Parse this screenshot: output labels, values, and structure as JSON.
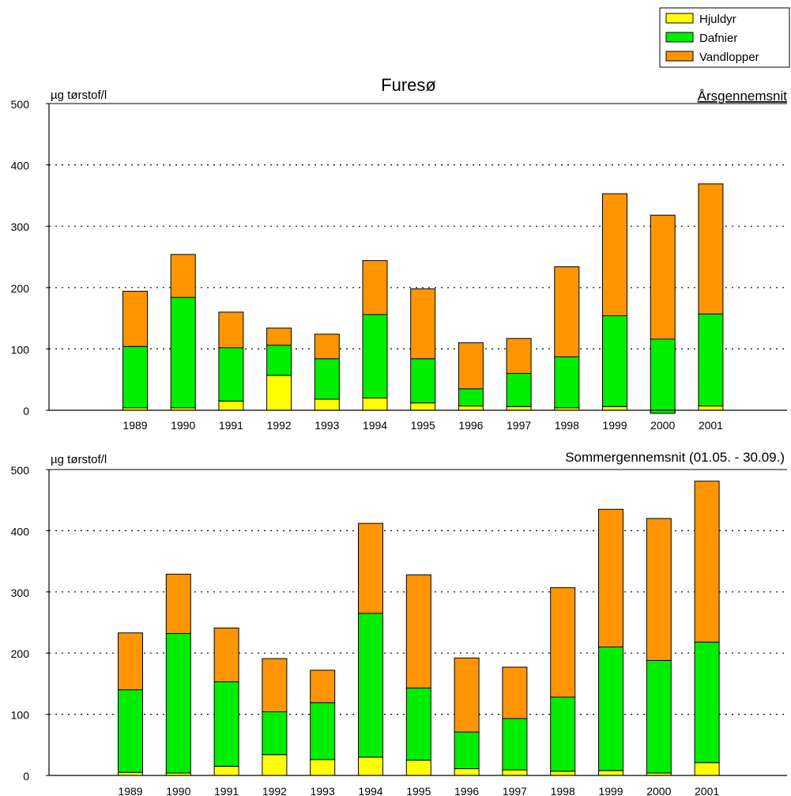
{
  "title": "Furesø",
  "legend": {
    "position": "top-right",
    "items": [
      {
        "label": "Hjuldyr",
        "color": "#FFFF00"
      },
      {
        "label": "Dafnier",
        "color": "#00EE00"
      },
      {
        "label": "Vandlopper",
        "color": "#FF9500"
      }
    ]
  },
  "chart_data": [
    {
      "type": "bar",
      "stacked": true,
      "subtitle": "Årsgennemsnit",
      "ylabel": "µg tørstof/l",
      "ylim": [
        0,
        500
      ],
      "yticks": [
        0,
        100,
        200,
        300,
        400,
        500
      ],
      "grid": "dotted-horizontal",
      "categories": [
        "1989",
        "1990",
        "1991",
        "1992",
        "1993",
        "1994",
        "1995",
        "1996",
        "1997",
        "1998",
        "1999",
        "2000",
        "2001"
      ],
      "series": [
        {
          "name": "Hjuldyr",
          "color": "#FFFF00",
          "values": [
            4,
            4,
            15,
            57,
            18,
            20,
            12,
            7,
            6,
            4,
            6,
            -5,
            7
          ]
        },
        {
          "name": "Dafnier",
          "color": "#00EE00",
          "values": [
            100,
            180,
            87,
            49,
            66,
            136,
            72,
            28,
            54,
            83,
            148,
            121,
            150
          ]
        },
        {
          "name": "Vandlopper",
          "color": "#FF9500",
          "values": [
            90,
            70,
            58,
            28,
            40,
            88,
            114,
            75,
            57,
            147,
            199,
            202,
            212
          ]
        }
      ]
    },
    {
      "type": "bar",
      "stacked": true,
      "subtitle": "Sommergennemsnit (01.05. - 30.09.)",
      "ylabel": "µg tørstof/l",
      "ylim": [
        0,
        500
      ],
      "yticks": [
        0,
        100,
        200,
        300,
        400,
        500
      ],
      "grid": "dotted-horizontal",
      "categories": [
        "1989",
        "1990",
        "1991",
        "1992",
        "1993",
        "1994",
        "1995",
        "1996",
        "1997",
        "1998",
        "1999",
        "2000",
        "2001"
      ],
      "series": [
        {
          "name": "Hjuldyr",
          "color": "#FFFF00",
          "values": [
            5,
            4,
            15,
            34,
            26,
            30,
            25,
            11,
            9,
            7,
            8,
            4,
            21
          ]
        },
        {
          "name": "Dafnier",
          "color": "#00EE00",
          "values": [
            135,
            228,
            138,
            70,
            93,
            235,
            118,
            60,
            84,
            121,
            202,
            184,
            197
          ]
        },
        {
          "name": "Vandlopper",
          "color": "#FF9500",
          "values": [
            93,
            97,
            88,
            87,
            53,
            147,
            185,
            121,
            84,
            179,
            225,
            232,
            263
          ]
        }
      ]
    }
  ]
}
